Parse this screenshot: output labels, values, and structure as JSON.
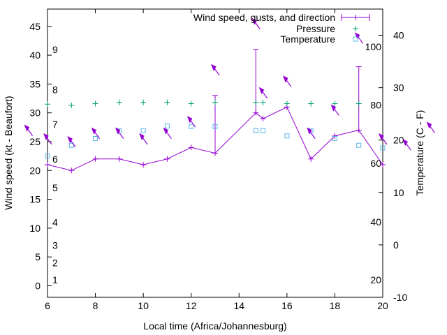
{
  "chart_data": {
    "type": "line",
    "title": "",
    "xlabel": "Local time (Africa/Johannesburg)",
    "ylabel_left": "Wind speed (kt - Beaufort)",
    "ylabel_right": "Temperature (C - F)",
    "xlim": [
      6,
      20
    ],
    "ylim_left": [
      -2,
      48
    ],
    "ylim_right": [
      -10,
      45
    ],
    "x_ticks": [
      6,
      8,
      10,
      12,
      14,
      16,
      18,
      20
    ],
    "y_left_ticks": [
      0,
      5,
      10,
      15,
      20,
      25,
      30,
      35,
      40,
      45
    ],
    "y_right_ticks": [
      -10,
      0,
      10,
      20,
      30,
      40
    ],
    "beaufort_labels": [
      {
        "label": "1",
        "kt": 1
      },
      {
        "label": "2",
        "kt": 4
      },
      {
        "label": "3",
        "kt": 7
      },
      {
        "label": "4",
        "kt": 11
      },
      {
        "label": "5",
        "kt": 17
      },
      {
        "label": "6",
        "kt": 22
      },
      {
        "label": "7",
        "kt": 28
      },
      {
        "label": "8",
        "kt": 34
      },
      {
        "label": "9",
        "kt": 41
      }
    ],
    "fahrenheit_labels": [
      {
        "label": "20",
        "c": -6.7
      },
      {
        "label": "40",
        "c": 4.4
      },
      {
        "label": "60",
        "c": 15.6
      },
      {
        "label": "80",
        "c": 26.7
      },
      {
        "label": "100",
        "c": 37.8
      }
    ],
    "legend": [
      {
        "label": "Wind speed, gusts, and direction",
        "color": "#9400d3",
        "marker": "plus-line"
      },
      {
        "label": "Pressure",
        "color": "#009e73",
        "marker": "plus"
      },
      {
        "label": "Temperature",
        "color": "#56b4e9",
        "marker": "square"
      }
    ],
    "series": [
      {
        "name": "Wind speed",
        "color": "#9400d3",
        "x": [
          6,
          7,
          8,
          9,
          10,
          11,
          12,
          13,
          14.7,
          15,
          16,
          17,
          18,
          19,
          20
        ],
        "y": [
          21,
          20,
          22,
          22,
          21,
          22,
          24,
          23,
          30,
          29,
          31,
          22,
          26,
          27,
          21
        ]
      },
      {
        "name": "Gusts",
        "color": "#9400d3",
        "x": [
          13,
          14.7,
          19
        ],
        "y": [
          33,
          41,
          38
        ]
      },
      {
        "name": "Pressure",
        "color": "#009e73",
        "x": [
          6,
          7,
          8,
          9,
          10,
          11,
          12,
          13,
          14.7,
          15,
          16,
          17,
          18,
          19
        ],
        "y": [
          31.5,
          31.3,
          31.6,
          31.8,
          31.8,
          31.8,
          31.6,
          31.8,
          31.8,
          31.8,
          31.6,
          31.6,
          31.6,
          31.6
        ]
      },
      {
        "name": "Temperature",
        "color": "#56b4e9",
        "unit": "C",
        "x": [
          6,
          7,
          8,
          9,
          10,
          11,
          12,
          13,
          14.7,
          15,
          16,
          17,
          18,
          19,
          20
        ],
        "y": [
          17,
          19,
          20.3,
          21.8,
          21.8,
          22.7,
          22.6,
          22.6,
          21.8,
          21.8,
          20.8,
          21.8,
          20.3,
          19,
          18.5
        ]
      }
    ],
    "wind_direction_arrows": [
      {
        "x": 5.2,
        "kt": 27
      },
      {
        "x": 6,
        "kt": 25.5
      },
      {
        "x": 7,
        "kt": 25
      },
      {
        "x": 8,
        "kt": 26.5
      },
      {
        "x": 9,
        "kt": 26.5
      },
      {
        "x": 10,
        "kt": 25.5
      },
      {
        "x": 11,
        "kt": 26.5
      },
      {
        "x": 12,
        "kt": 28.5
      },
      {
        "x": 13,
        "kt": 37.5
      },
      {
        "x": 14.7,
        "kt": 45.5
      },
      {
        "x": 15,
        "kt": 33.5
      },
      {
        "x": 16,
        "kt": 35.5
      },
      {
        "x": 17,
        "kt": 26.5
      },
      {
        "x": 18,
        "kt": 30.5
      },
      {
        "x": 19,
        "kt": 43
      },
      {
        "x": 20,
        "kt": 25.5
      },
      {
        "x": 21,
        "kt": 24.5
      },
      {
        "x": 22,
        "kt": 27.5
      }
    ]
  }
}
